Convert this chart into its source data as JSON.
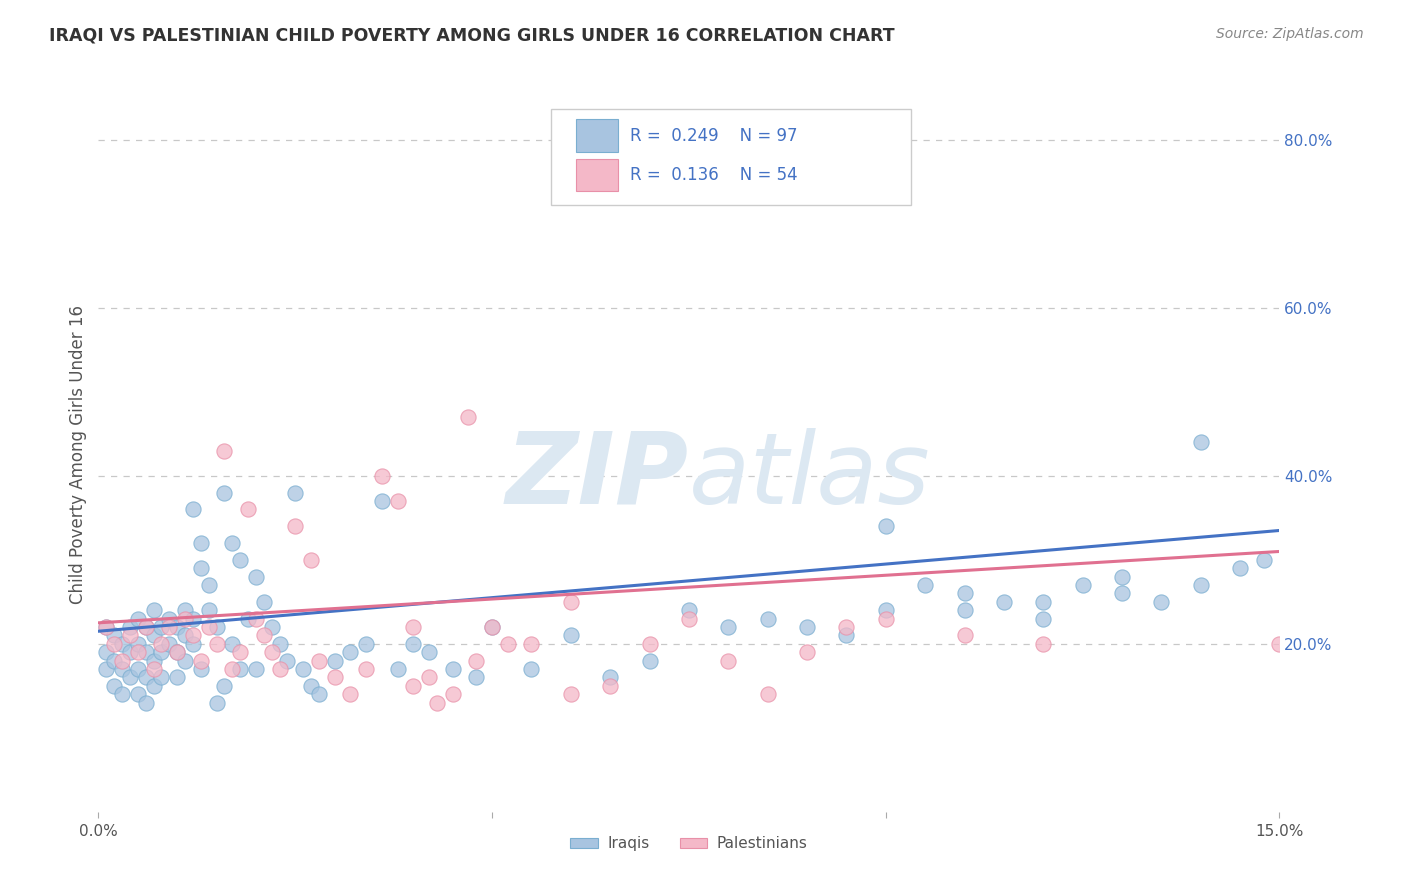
{
  "title": "IRAQI VS PALESTINIAN CHILD POVERTY AMONG GIRLS UNDER 16 CORRELATION CHART",
  "source": "Source: ZipAtlas.com",
  "ylabel": "Child Poverty Among Girls Under 16",
  "xlim": [
    0.0,
    0.15
  ],
  "ylim": [
    0.0,
    0.85
  ],
  "iraqi_color": "#a8c4e0",
  "iraqi_edge_color": "#7aaed0",
  "palestinian_color": "#f4b8c8",
  "palestinian_edge_color": "#e890a8",
  "iraqi_line_color": "#4472c4",
  "palestinian_line_color": "#e07090",
  "r_iraqi": 0.249,
  "n_iraqi": 97,
  "r_palestinian": 0.136,
  "n_palestinian": 54,
  "legend_label_iraqi": "Iraqis",
  "legend_label_palestinian": "Palestinians",
  "watermark_zip": "ZIP",
  "watermark_atlas": "atlas",
  "grid_color": "#c8c8c8",
  "background_color": "#ffffff",
  "line_y0_iraqi": 0.215,
  "line_y1_iraqi": 0.335,
  "line_y0_pal": 0.225,
  "line_y1_pal": 0.31,
  "iraqi_x": [
    0.001,
    0.001,
    0.001,
    0.002,
    0.002,
    0.002,
    0.003,
    0.003,
    0.003,
    0.004,
    0.004,
    0.004,
    0.005,
    0.005,
    0.005,
    0.005,
    0.006,
    0.006,
    0.006,
    0.006,
    0.007,
    0.007,
    0.007,
    0.007,
    0.008,
    0.008,
    0.008,
    0.009,
    0.009,
    0.01,
    0.01,
    0.01,
    0.011,
    0.011,
    0.011,
    0.012,
    0.012,
    0.012,
    0.013,
    0.013,
    0.013,
    0.014,
    0.014,
    0.015,
    0.015,
    0.016,
    0.016,
    0.017,
    0.017,
    0.018,
    0.018,
    0.019,
    0.02,
    0.02,
    0.021,
    0.022,
    0.023,
    0.024,
    0.025,
    0.026,
    0.027,
    0.028,
    0.03,
    0.032,
    0.034,
    0.036,
    0.038,
    0.04,
    0.042,
    0.045,
    0.048,
    0.05,
    0.055,
    0.06,
    0.065,
    0.07,
    0.075,
    0.08,
    0.085,
    0.09,
    0.095,
    0.1,
    0.105,
    0.11,
    0.115,
    0.12,
    0.125,
    0.13,
    0.135,
    0.14,
    0.1,
    0.11,
    0.12,
    0.13,
    0.14,
    0.145,
    0.148
  ],
  "iraqi_y": [
    0.22,
    0.19,
    0.17,
    0.21,
    0.18,
    0.15,
    0.2,
    0.17,
    0.14,
    0.22,
    0.19,
    0.16,
    0.23,
    0.2,
    0.17,
    0.14,
    0.22,
    0.19,
    0.16,
    0.13,
    0.24,
    0.21,
    0.18,
    0.15,
    0.22,
    0.19,
    0.16,
    0.23,
    0.2,
    0.22,
    0.19,
    0.16,
    0.24,
    0.21,
    0.18,
    0.23,
    0.36,
    0.2,
    0.32,
    0.29,
    0.17,
    0.27,
    0.24,
    0.22,
    0.13,
    0.38,
    0.15,
    0.32,
    0.2,
    0.3,
    0.17,
    0.23,
    0.28,
    0.17,
    0.25,
    0.22,
    0.2,
    0.18,
    0.38,
    0.17,
    0.15,
    0.14,
    0.18,
    0.19,
    0.2,
    0.37,
    0.17,
    0.2,
    0.19,
    0.17,
    0.16,
    0.22,
    0.17,
    0.21,
    0.16,
    0.18,
    0.24,
    0.22,
    0.23,
    0.22,
    0.21,
    0.24,
    0.27,
    0.24,
    0.25,
    0.23,
    0.27,
    0.26,
    0.25,
    0.44,
    0.34,
    0.26,
    0.25,
    0.28,
    0.27,
    0.29,
    0.3
  ],
  "palestinian_x": [
    0.001,
    0.002,
    0.003,
    0.004,
    0.005,
    0.006,
    0.007,
    0.008,
    0.009,
    0.01,
    0.011,
    0.012,
    0.013,
    0.014,
    0.015,
    0.016,
    0.017,
    0.018,
    0.019,
    0.02,
    0.021,
    0.022,
    0.023,
    0.025,
    0.027,
    0.028,
    0.03,
    0.032,
    0.034,
    0.036,
    0.038,
    0.04,
    0.042,
    0.045,
    0.048,
    0.05,
    0.04,
    0.043,
    0.047,
    0.052,
    0.055,
    0.06,
    0.06,
    0.065,
    0.07,
    0.075,
    0.08,
    0.085,
    0.09,
    0.095,
    0.1,
    0.11,
    0.12,
    0.15
  ],
  "palestinian_y": [
    0.22,
    0.2,
    0.18,
    0.21,
    0.19,
    0.22,
    0.17,
    0.2,
    0.22,
    0.19,
    0.23,
    0.21,
    0.18,
    0.22,
    0.2,
    0.43,
    0.17,
    0.19,
    0.36,
    0.23,
    0.21,
    0.19,
    0.17,
    0.34,
    0.3,
    0.18,
    0.16,
    0.14,
    0.17,
    0.4,
    0.37,
    0.15,
    0.16,
    0.14,
    0.18,
    0.22,
    0.22,
    0.13,
    0.47,
    0.2,
    0.2,
    0.25,
    0.14,
    0.15,
    0.2,
    0.23,
    0.18,
    0.14,
    0.19,
    0.22,
    0.23,
    0.21,
    0.2,
    0.2
  ]
}
